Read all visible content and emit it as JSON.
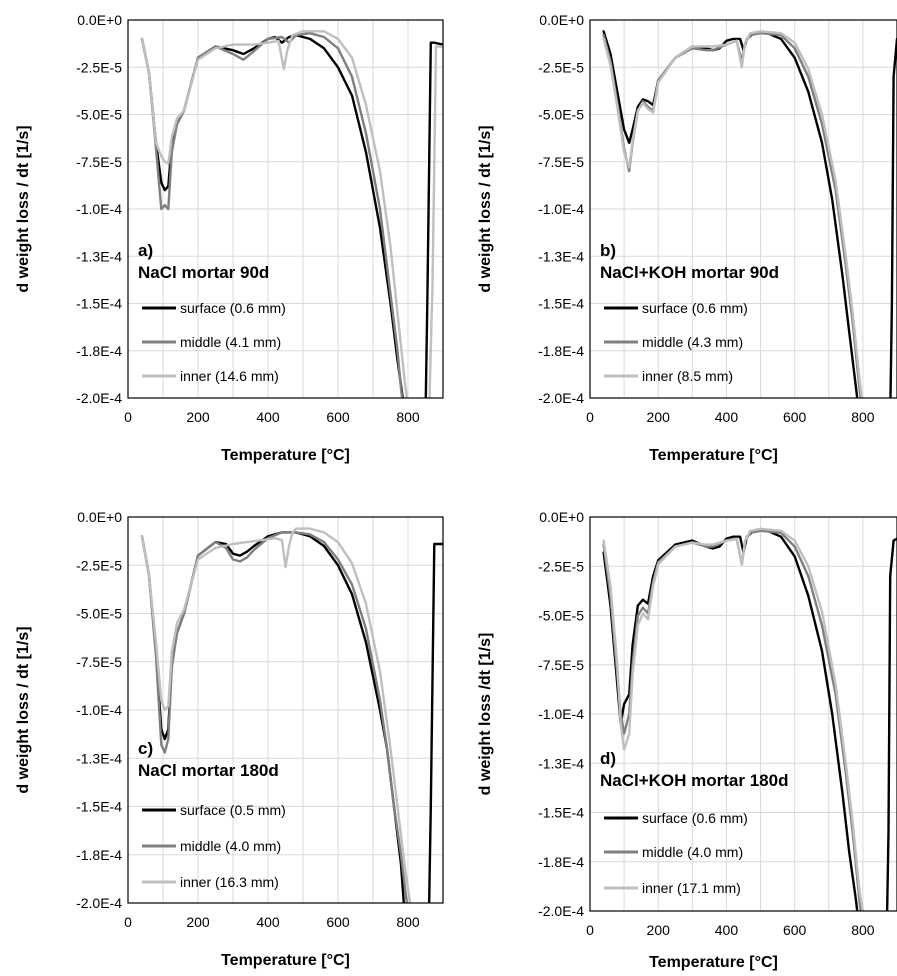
{
  "chart_data": [
    {
      "type": "line",
      "panel_label": "a)",
      "title": "NaCl mortar 90d",
      "xlabel": "Temperature [°C]",
      "ylabel": "d weight loss / dt [1/s]",
      "xlim": [
        0,
        900
      ],
      "ylim": [
        -0.0002,
        0
      ],
      "xticks": [
        "0",
        "200",
        "400",
        "600",
        "800"
      ],
      "yticks": [
        "0.0E+0",
        "-2.5E-5",
        "-5.0E-5",
        "-7.5E-5",
        "-1.0E-4",
        "-1.3E-4",
        "-1.5E-4",
        "-1.8E-4",
        "-2.0E-4"
      ],
      "grid": true,
      "legend": "left",
      "series": [
        {
          "name": "surface (0.6 mm)",
          "color": "#000000",
          "x": [
            40,
            60,
            80,
            95,
            105,
            115,
            125,
            140,
            160,
            200,
            250,
            300,
            330,
            360,
            400,
            420,
            440,
            460,
            480,
            520,
            560,
            600,
            640,
            680,
            720,
            750,
            770,
            785,
            790,
            850,
            855,
            865,
            875,
            900
          ],
          "y": [
            -1e-05,
            -2.8e-05,
            -6.5e-05,
            -8.6e-05,
            -9e-05,
            -8.8e-05,
            -6.5e-05,
            -5.5e-05,
            -4.8e-05,
            -2e-05,
            -1.4e-05,
            -1.6e-05,
            -1.8e-05,
            -1.5e-05,
            -1e-05,
            -9e-06,
            -1.2e-05,
            -9e-06,
            -8e-06,
            -1e-05,
            -1.5e-05,
            -2.5e-05,
            -4e-05,
            -7e-05,
            -0.00011,
            -0.00015,
            -0.00018,
            -0.0002,
            -0.00021,
            -0.00021,
            -0.00015,
            -1.2e-05,
            -1.2e-05,
            -1.3e-05
          ]
        },
        {
          "name": "middle (4.1 mm)",
          "color": "#7f7f7f",
          "x": [
            40,
            60,
            80,
            95,
            105,
            115,
            125,
            140,
            160,
            200,
            250,
            300,
            330,
            350,
            400,
            440,
            460,
            480,
            520,
            560,
            600,
            640,
            680,
            720,
            750,
            770,
            780,
            790
          ],
          "y": [
            -1e-05,
            -2.8e-05,
            -6.8e-05,
            -0.0001,
            -9.8e-05,
            -0.0001,
            -7e-05,
            -5.5e-05,
            -4.8e-05,
            -2e-05,
            -1.4e-05,
            -1.8e-05,
            -2.1e-05,
            -1.8e-05,
            -1e-05,
            -9e-06,
            -1.2e-05,
            -8e-06,
            -7e-06,
            -9e-06,
            -1.5e-05,
            -3e-05,
            -6e-05,
            -0.0001,
            -0.000145,
            -0.000175,
            -0.000195,
            -0.00021
          ]
        },
        {
          "name": "inner (14.6 mm)",
          "color": "#bfbfbf",
          "x": [
            40,
            60,
            80,
            95,
            105,
            115,
            125,
            140,
            160,
            200,
            250,
            300,
            330,
            360,
            400,
            430,
            445,
            455,
            470,
            500,
            560,
            600,
            640,
            680,
            720,
            750,
            770,
            790,
            800,
            860,
            870,
            880,
            900
          ],
          "y": [
            -1e-05,
            -2.8e-05,
            -6.5e-05,
            -7.2e-05,
            -7.5e-05,
            -7.6e-05,
            -6.2e-05,
            -5.2e-05,
            -4.8e-05,
            -2.1e-05,
            -1.5e-05,
            -1.3e-05,
            -1.3e-05,
            -1.3e-05,
            -1.2e-05,
            -1.1e-05,
            -2.6e-05,
            -1.6e-05,
            -8e-06,
            -6e-06,
            -6e-06,
            -1e-05,
            -2e-05,
            -4.5e-05,
            -8e-05,
            -0.00012,
            -0.000155,
            -0.00019,
            -0.000205,
            -0.00021,
            -0.00014,
            -1.4e-05,
            -1.4e-05
          ]
        }
      ]
    },
    {
      "type": "line",
      "panel_label": "b)",
      "title": "NaCl+KOH mortar 90d",
      "xlabel": "Temperature [°C]",
      "ylabel": "d weight loss / dt [1/s]",
      "xlim": [
        0,
        900
      ],
      "ylim": [
        -0.0002,
        0
      ],
      "xticks": [
        "0",
        "200",
        "400",
        "600",
        "800"
      ],
      "yticks": [
        "0.0E+0",
        "-2.5E-5",
        "-5.0E-5",
        "-7.5E-5",
        "-1.0E-4",
        "-1.3E-4",
        "-1.5E-4",
        "-1.8E-4",
        "-2.0E-4"
      ],
      "grid": true,
      "legend": "left",
      "series": [
        {
          "name": "surface (0.6 mm)",
          "color": "#000000",
          "x": [
            40,
            60,
            80,
            100,
            115,
            125,
            140,
            155,
            170,
            185,
            200,
            250,
            300,
            340,
            360,
            380,
            400,
            420,
            440,
            450,
            460,
            480,
            520,
            560,
            600,
            640,
            680,
            710,
            740,
            760,
            780,
            790,
            880,
            885,
            890,
            900
          ],
          "y": [
            -6e-06,
            -1.8e-05,
            -3.8e-05,
            -5.8e-05,
            -6.5e-05,
            -5.8e-05,
            -4.6e-05,
            -4.2e-05,
            -4.3e-05,
            -4.5e-05,
            -3.2e-05,
            -2e-05,
            -1.4e-05,
            -1.5e-05,
            -1.6e-05,
            -1.5e-05,
            -1.1e-05,
            -1e-05,
            -1e-05,
            -1.6e-05,
            -1e-05,
            -7e-06,
            -7e-06,
            -1e-05,
            -2e-05,
            -3.8e-05,
            -6.5e-05,
            -9.5e-05,
            -0.000135,
            -0.000165,
            -0.000195,
            -0.00021,
            -0.00021,
            -0.00015,
            -3e-05,
            -1e-05
          ]
        },
        {
          "name": "middle (4.3 mm)",
          "color": "#7f7f7f",
          "x": [
            40,
            60,
            80,
            100,
            115,
            125,
            140,
            155,
            170,
            185,
            200,
            250,
            300,
            340,
            360,
            400,
            430,
            445,
            455,
            470,
            500,
            560,
            600,
            640,
            680,
            720,
            750,
            770,
            790,
            800
          ],
          "y": [
            -8e-06,
            -2.2e-05,
            -4.4e-05,
            -6.8e-05,
            -8e-05,
            -6.5e-05,
            -4.8e-05,
            -4.3e-05,
            -4.6e-05,
            -4.8e-05,
            -3.2e-05,
            -2e-05,
            -1.5e-05,
            -1.6e-05,
            -1.6e-05,
            -1.3e-05,
            -1.1e-05,
            -2.2e-05,
            -1.2e-05,
            -8e-06,
            -7e-06,
            -8e-06,
            -1.5e-05,
            -3e-05,
            -5.5e-05,
            -9e-05,
            -0.00013,
            -0.00016,
            -0.000195,
            -0.00021
          ]
        },
        {
          "name": "inner (8.5 mm)",
          "color": "#bfbfbf",
          "x": [
            40,
            60,
            80,
            100,
            115,
            125,
            140,
            155,
            170,
            185,
            200,
            250,
            300,
            340,
            360,
            400,
            430,
            445,
            455,
            470,
            500,
            560,
            600,
            640,
            680,
            720,
            750,
            770,
            790,
            800
          ],
          "y": [
            -1e-05,
            -2.4e-05,
            -4.6e-05,
            -7e-05,
            -7.8e-05,
            -6.4e-05,
            -4.8e-05,
            -4.4e-05,
            -4.7e-05,
            -4.9e-05,
            -3.3e-05,
            -2e-05,
            -1.4e-05,
            -1.4e-05,
            -1.4e-05,
            -1.3e-05,
            -1.1e-05,
            -2.5e-05,
            -1.2e-05,
            -7e-06,
            -6e-06,
            -7e-06,
            -1.2e-05,
            -2.6e-05,
            -5e-05,
            -8.5e-05,
            -0.000125,
            -0.000155,
            -0.00019,
            -0.000205
          ]
        }
      ]
    },
    {
      "type": "line",
      "panel_label": "c)",
      "title": "NaCl mortar 180d",
      "xlabel": "Temperature [°C]",
      "ylabel": "d weight loss / dt [1/s]",
      "xlim": [
        0,
        900
      ],
      "ylim": [
        -0.0002,
        0
      ],
      "xticks": [
        "0",
        "200",
        "400",
        "600",
        "800"
      ],
      "yticks": [
        "0.0E+0",
        "-2.5E-5",
        "-5.0E-5",
        "-7.5E-5",
        "-1.0E-4",
        "-1.3E-4",
        "-1.5E-4",
        "-1.8E-4",
        "-2.0E-4"
      ],
      "grid": true,
      "legend": "left",
      "series": [
        {
          "name": "surface (0.5 mm)",
          "color": "#000000",
          "x": [
            40,
            60,
            80,
            95,
            105,
            115,
            125,
            140,
            160,
            200,
            250,
            280,
            300,
            320,
            340,
            360,
            400,
            440,
            460,
            480,
            520,
            560,
            600,
            640,
            680,
            720,
            740,
            760,
            780,
            790,
            860,
            865,
            875,
            900
          ],
          "y": [
            -1e-05,
            -3e-05,
            -7e-05,
            -0.00011,
            -0.000115,
            -0.00011,
            -7.5e-05,
            -6e-05,
            -5e-05,
            -2e-05,
            -1.3e-05,
            -1.4e-05,
            -1.9e-05,
            -2e-05,
            -1.8e-05,
            -1.5e-05,
            -1e-05,
            -8e-06,
            -8e-06,
            -8e-06,
            -1e-05,
            -1.5e-05,
            -2.5e-05,
            -4e-05,
            -6.5e-05,
            -0.0001,
            -0.00012,
            -0.00015,
            -0.00018,
            -0.000205,
            -0.000205,
            -0.00015,
            -1.4e-05,
            -1.4e-05
          ]
        },
        {
          "name": "middle (4.0 mm)",
          "color": "#7f7f7f",
          "x": [
            40,
            60,
            80,
            95,
            105,
            115,
            125,
            140,
            160,
            200,
            250,
            280,
            300,
            320,
            340,
            360,
            400,
            440,
            460,
            480,
            520,
            560,
            600,
            640,
            680,
            720,
            740,
            760,
            780,
            800
          ],
          "y": [
            -1e-05,
            -3e-05,
            -7.2e-05,
            -0.000118,
            -0.000122,
            -0.000115,
            -7.8e-05,
            -6e-05,
            -5e-05,
            -2e-05,
            -1.3e-05,
            -1.6e-05,
            -2.2e-05,
            -2.3e-05,
            -2.1e-05,
            -1.7e-05,
            -1.1e-05,
            -8e-06,
            -8e-06,
            -8e-06,
            -9e-06,
            -1.3e-05,
            -2.2e-05,
            -3.5e-05,
            -5.8e-05,
            -9.5e-05,
            -0.00012,
            -0.00015,
            -0.000175,
            -0.000205
          ]
        },
        {
          "name": "inner (16.3 mm)",
          "color": "#bfbfbf",
          "x": [
            40,
            60,
            80,
            95,
            105,
            115,
            125,
            140,
            160,
            200,
            250,
            300,
            340,
            380,
            420,
            440,
            450,
            460,
            470,
            480,
            520,
            560,
            600,
            640,
            680,
            720,
            750,
            770,
            790,
            810
          ],
          "y": [
            -1e-05,
            -3e-05,
            -6.5e-05,
            -9.5e-05,
            -0.0001,
            -9.8e-05,
            -7e-05,
            -5.5e-05,
            -4.8e-05,
            -2.2e-05,
            -1.6e-05,
            -1.4e-05,
            -1.3e-05,
            -1.2e-05,
            -1.1e-05,
            -1.2e-05,
            -2.6e-05,
            -1.5e-05,
            -8e-06,
            -6e-06,
            -6e-06,
            -8e-06,
            -1.3e-05,
            -2.4e-05,
            -4.5e-05,
            -8e-05,
            -0.00012,
            -0.00015,
            -0.00018,
            -0.000205
          ]
        }
      ]
    },
    {
      "type": "line",
      "panel_label": "d)",
      "title": "NaCl+KOH mortar 180d",
      "xlabel": "Temperature [°C]",
      "ylabel": "d weight loss /dt [1/s]",
      "xlim": [
        0,
        900
      ],
      "ylim": [
        -0.0002,
        0
      ],
      "xticks": [
        "0",
        "200",
        "400",
        "600",
        "800"
      ],
      "yticks": [
        "0.0E+0",
        "-2.5E-5",
        "-5.0E-5",
        "-7.5E-5",
        "-1.0E-4",
        "-1.3E-4",
        "-1.5E-4",
        "-1.8E-4",
        "-2.0E-4"
      ],
      "grid": true,
      "legend": "left",
      "series": [
        {
          "name": "surface (0.6 mm)",
          "color": "#000000",
          "x": [
            40,
            60,
            80,
            90,
            100,
            115,
            125,
            140,
            155,
            170,
            185,
            200,
            250,
            300,
            340,
            360,
            380,
            400,
            420,
            440,
            450,
            460,
            480,
            520,
            560,
            600,
            640,
            680,
            710,
            740,
            760,
            780,
            790,
            870,
            875,
            880,
            890,
            900
          ],
          "y": [
            -1.8e-05,
            -4.5e-05,
            -8.5e-05,
            -0.000105,
            -9.5e-05,
            -9e-05,
            -6.5e-05,
            -4.5e-05,
            -4.2e-05,
            -4.4e-05,
            -3e-05,
            -2.2e-05,
            -1.4e-05,
            -1.2e-05,
            -1.5e-05,
            -1.6e-05,
            -1.5e-05,
            -1.1e-05,
            -1e-05,
            -1e-05,
            -1.8e-05,
            -1e-05,
            -7e-06,
            -7e-06,
            -1e-05,
            -2e-05,
            -4e-05,
            -6.8e-05,
            -0.0001,
            -0.00014,
            -0.00017,
            -0.000195,
            -0.00021,
            -0.00021,
            -0.00016,
            -3e-05,
            -1.2e-05,
            -1.1e-05
          ]
        },
        {
          "name": "middle (4.0 mm)",
          "color": "#7f7f7f",
          "x": [
            40,
            60,
            80,
            90,
            100,
            115,
            125,
            140,
            155,
            170,
            185,
            200,
            250,
            300,
            340,
            360,
            400,
            430,
            445,
            455,
            470,
            500,
            560,
            600,
            640,
            680,
            720,
            750,
            770,
            790,
            800
          ],
          "y": [
            -1.4e-05,
            -4e-05,
            -8e-05,
            -0.0001,
            -0.00011,
            -0.0001,
            -7.5e-05,
            -5e-05,
            -4.6e-05,
            -4.9e-05,
            -3.3e-05,
            -2.3e-05,
            -1.5e-05,
            -1.3e-05,
            -1.5e-05,
            -1.5e-05,
            -1.2e-05,
            -1.1e-05,
            -2.4e-05,
            -1.2e-05,
            -8e-06,
            -7e-06,
            -8e-06,
            -1.5e-05,
            -3e-05,
            -5.5e-05,
            -9e-05,
            -0.00013,
            -0.00016,
            -0.000195,
            -0.00021
          ]
        },
        {
          "name": "inner (17.1 mm)",
          "color": "#bfbfbf",
          "x": [
            40,
            60,
            80,
            90,
            100,
            115,
            125,
            140,
            155,
            170,
            185,
            200,
            250,
            300,
            340,
            360,
            400,
            430,
            445,
            455,
            470,
            500,
            560,
            600,
            640,
            680,
            720,
            750,
            770,
            790,
            805
          ],
          "y": [
            -1.2e-05,
            -3.5e-05,
            -7.5e-05,
            -0.000105,
            -0.000118,
            -0.00011,
            -8e-05,
            -5.5e-05,
            -4.9e-05,
            -5.2e-05,
            -3.5e-05,
            -2.4e-05,
            -1.5e-05,
            -1.3e-05,
            -1.4e-05,
            -1.4e-05,
            -1.2e-05,
            -1.1e-05,
            -2.4e-05,
            -1.2e-05,
            -7e-06,
            -6e-06,
            -7e-06,
            -1.2e-05,
            -2.5e-05,
            -4.8e-05,
            -8.5e-05,
            -0.000125,
            -0.000155,
            -0.00019,
            -0.000205
          ]
        }
      ]
    }
  ]
}
